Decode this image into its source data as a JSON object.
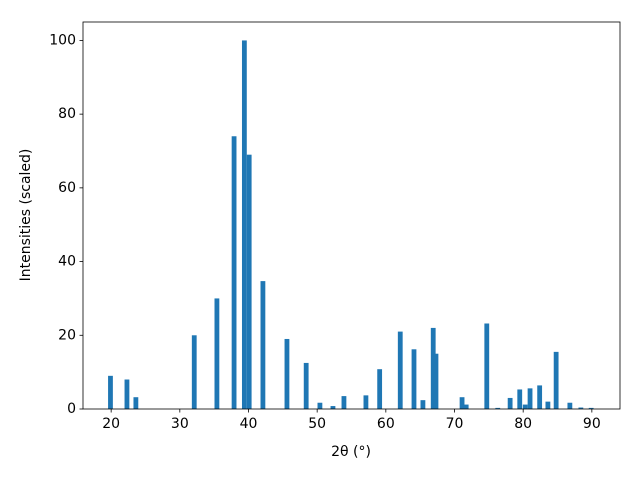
{
  "chart_data": {
    "type": "bar",
    "xlabel": "2θ (°)",
    "ylabel": "Intensities (scaled)",
    "x": [
      19.9,
      22.3,
      23.6,
      32.1,
      35.4,
      37.9,
      39.4,
      40.1,
      42.1,
      45.6,
      48.4,
      50.4,
      52.3,
      53.9,
      57.1,
      59.1,
      62.1,
      64.1,
      65.4,
      66.9,
      67.3,
      71.1,
      71.7,
      74.7,
      76.3,
      78.1,
      79.5,
      80.3,
      81.0,
      82.4,
      83.6,
      84.8,
      86.8,
      88.4,
      89.9
    ],
    "values": [
      9,
      8,
      3.2,
      20,
      30,
      74,
      100,
      69,
      34.7,
      19,
      12.5,
      1.7,
      0.8,
      3.5,
      3.7,
      10.8,
      21,
      16.2,
      2.4,
      22,
      15,
      3.2,
      1.2,
      23.2,
      0.3,
      3,
      5.3,
      1.2,
      5.6,
      6.4,
      2,
      15.5,
      1.7,
      0.4,
      0.3
    ],
    "color": "#1f77b4",
    "xlim": [
      15.9,
      94.1
    ],
    "ylim": [
      0,
      105
    ],
    "xticks": [
      20,
      30,
      40,
      50,
      60,
      70,
      80,
      90
    ],
    "yticks": [
      0,
      20,
      40,
      60,
      80,
      100
    ]
  }
}
